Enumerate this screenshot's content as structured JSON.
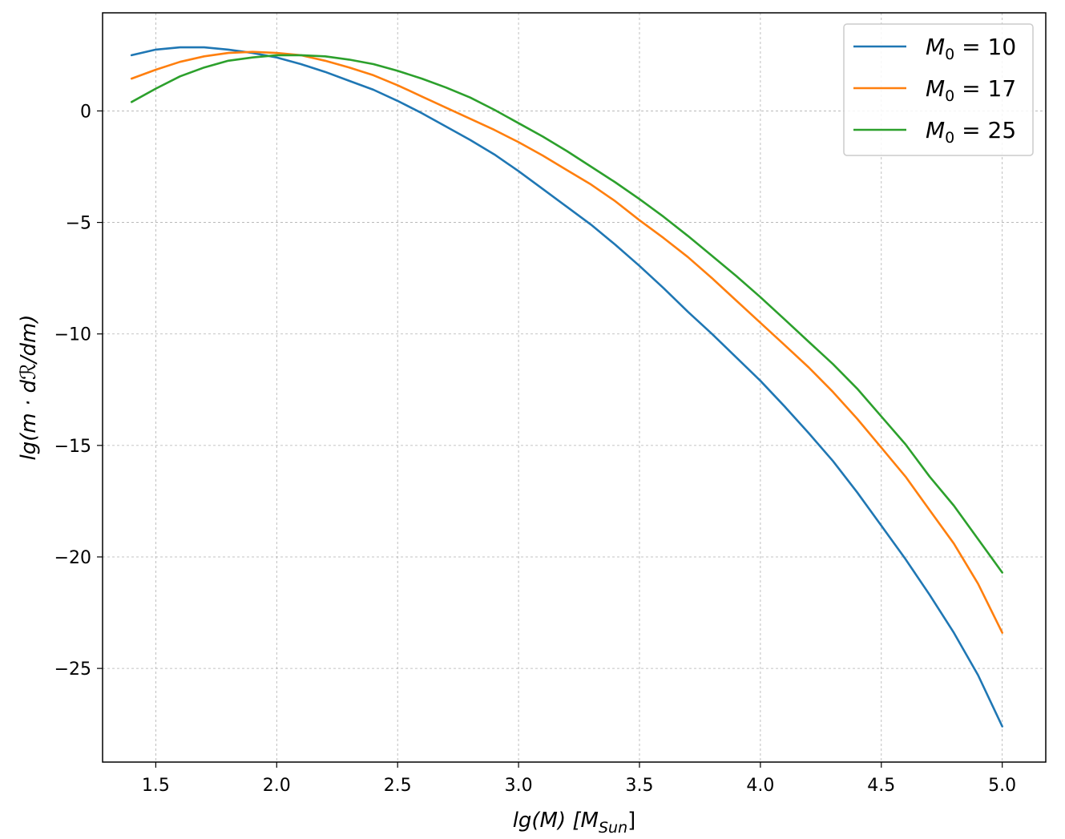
{
  "chart_data": {
    "type": "line",
    "title": "",
    "xlabel": "lg(M) [M_Sun]",
    "xlabel_parts": {
      "main": "lg(M) [M",
      "sub": "Sun",
      "end": "]"
    },
    "ylabel": "lg(m · dℛ/dm)",
    "xlim": [
      1.28,
      5.18
    ],
    "ylim": [
      -29.2,
      4.4
    ],
    "xticks": [
      1.5,
      2.0,
      2.5,
      3.0,
      3.5,
      4.0,
      4.5,
      5.0
    ],
    "xtick_labels": [
      "1.5",
      "2.0",
      "2.5",
      "3.0",
      "3.5",
      "4.0",
      "4.5",
      "5.0"
    ],
    "yticks": [
      0,
      -5,
      -10,
      -15,
      -20,
      -25
    ],
    "ytick_labels": [
      "0",
      "−5",
      "−10",
      "−15",
      "−20",
      "−25"
    ],
    "grid": true,
    "legend_position": "top-right",
    "x": [
      1.4,
      1.5,
      1.6,
      1.7,
      1.8,
      1.9,
      2.0,
      2.1,
      2.2,
      2.3,
      2.4,
      2.5,
      2.6,
      2.7,
      2.8,
      2.9,
      3.0,
      3.1,
      3.2,
      3.3,
      3.4,
      3.5,
      3.6,
      3.7,
      3.8,
      3.9,
      4.0,
      4.1,
      4.2,
      4.3,
      4.4,
      4.5,
      4.6,
      4.7,
      4.8,
      4.9,
      5.0
    ],
    "series": [
      {
        "name": "M0 = 10",
        "legend_label": {
          "sym": "M",
          "sub": "0",
          "rest": " = 10"
        },
        "color": "#1f77b4",
        "values": [
          2.5,
          2.75,
          2.85,
          2.85,
          2.75,
          2.6,
          2.4,
          2.1,
          1.75,
          1.35,
          0.95,
          0.45,
          -0.1,
          -0.7,
          -1.3,
          -1.95,
          -2.7,
          -3.5,
          -4.3,
          -5.1,
          -6.0,
          -6.95,
          -7.95,
          -9.0,
          -10.0,
          -11.05,
          -12.1,
          -13.25,
          -14.45,
          -15.7,
          -17.1,
          -18.6,
          -20.1,
          -21.7,
          -23.4,
          -25.3,
          -27.6
        ]
      },
      {
        "name": "M0 = 17",
        "legend_label": {
          "sym": "M",
          "sub": "0",
          "rest": " = 17"
        },
        "color": "#ff7f0e",
        "values": [
          1.45,
          1.85,
          2.2,
          2.45,
          2.6,
          2.65,
          2.6,
          2.5,
          2.25,
          1.95,
          1.6,
          1.15,
          0.65,
          0.15,
          -0.35,
          -0.85,
          -1.4,
          -2.0,
          -2.65,
          -3.3,
          -4.05,
          -4.9,
          -5.7,
          -6.55,
          -7.5,
          -8.5,
          -9.5,
          -10.5,
          -11.5,
          -12.6,
          -13.8,
          -15.1,
          -16.4,
          -17.9,
          -19.4,
          -21.2,
          -23.4
        ]
      },
      {
        "name": "M0 = 25",
        "legend_label": {
          "sym": "M",
          "sub": "0",
          "rest": " = 25"
        },
        "color": "#2ca02c",
        "values": [
          0.4,
          1.0,
          1.55,
          1.95,
          2.25,
          2.4,
          2.5,
          2.5,
          2.45,
          2.3,
          2.1,
          1.8,
          1.45,
          1.05,
          0.6,
          0.05,
          -0.55,
          -1.15,
          -1.8,
          -2.5,
          -3.2,
          -3.95,
          -4.75,
          -5.6,
          -6.5,
          -7.4,
          -8.35,
          -9.35,
          -10.35,
          -11.35,
          -12.45,
          -13.7,
          -14.95,
          -16.4,
          -17.7,
          -19.2,
          -20.7
        ]
      }
    ]
  }
}
